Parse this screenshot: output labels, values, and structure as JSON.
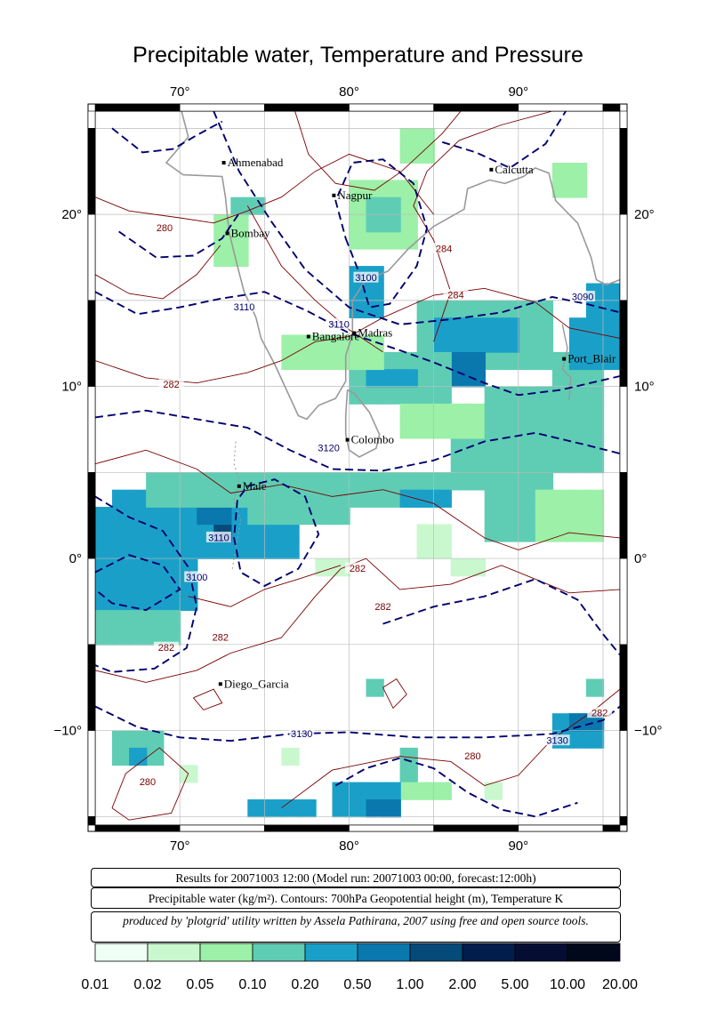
{
  "title": "Precipitable water, Temperature and Pressure",
  "map": {
    "lon_range": [
      65,
      96
    ],
    "lat_range": [
      -15.5,
      26
    ],
    "lon_ticks": [
      70,
      80,
      90
    ],
    "lat_ticks": [
      -10,
      0,
      10,
      20
    ],
    "lon_tick_labels": [
      "70°",
      "80°",
      "90°"
    ],
    "lat_tick_labels": [
      "−10°",
      "0°",
      "10°",
      "20°"
    ],
    "cities": [
      {
        "name": "Ahmenabad",
        "lon": 72.6,
        "lat": 23.0
      },
      {
        "name": "Nagpur",
        "lon": 79.1,
        "lat": 21.1
      },
      {
        "name": "Calcutta",
        "lon": 88.4,
        "lat": 22.6
      },
      {
        "name": "Bombay",
        "lon": 72.8,
        "lat": 18.9
      },
      {
        "name": "Bangalore",
        "lon": 77.6,
        "lat": 12.9
      },
      {
        "name": "Madras",
        "lon": 80.3,
        "lat": 13.1
      },
      {
        "name": "Port_Blair",
        "lon": 92.7,
        "lat": 11.6
      },
      {
        "name": "Colombo",
        "lon": 79.9,
        "lat": 6.9
      },
      {
        "name": "Male",
        "lon": 73.5,
        "lat": 4.2
      },
      {
        "name": "Diego_Garcia",
        "lon": 72.4,
        "lat": -7.3
      }
    ],
    "pressure_contour_labels": [
      "3090",
      "3100",
      "3110",
      "3120",
      "3130"
    ],
    "temperature_contour_labels": [
      "280",
      "282",
      "284"
    ],
    "pressure_color": "#00006e",
    "temperature_color": "#7a0000",
    "coast_color": "#999999"
  },
  "info": {
    "line1": "Results for 20071003 12:00 (Model run: 20071003 00:00, forecast:12:00h)",
    "line2": "Precipitable water (kg/m²).  Contours: 700hPa Geopotential height (m), Temperature K",
    "line3": "produced by 'plotgrid' utility written by Assela Pathirana, 2007 using free and open source tools."
  },
  "colorbar": {
    "labels": [
      "0.01",
      "0.02",
      "0.05",
      "0.10",
      "0.20",
      "0.50",
      "1.00",
      "2.00",
      "5.00",
      "10.00",
      "20.00"
    ],
    "colors": [
      "#effff5",
      "#c9f8cf",
      "#9cf0a8",
      "#5ecdb4",
      "#1aa0c8",
      "#0a78ad",
      "#054a78",
      "#021d4c",
      "#050d33",
      "#02081c"
    ]
  }
}
